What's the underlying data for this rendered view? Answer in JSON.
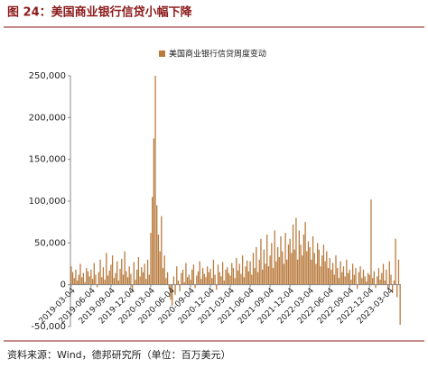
{
  "chart_data": {
    "type": "bar",
    "title": "图 24：美国商业银行信贷小幅下降",
    "source": "资料来源：Wind，德邦研究所（单位：百万美元）",
    "categories": [
      "2019-03-04",
      null,
      null,
      null,
      null,
      null,
      null,
      null,
      null,
      null,
      null,
      null,
      null,
      "2019-06-04",
      null,
      null,
      null,
      null,
      null,
      null,
      null,
      null,
      null,
      null,
      null,
      null,
      "2019-09-04",
      null,
      null,
      null,
      null,
      null,
      null,
      null,
      null,
      null,
      null,
      null,
      null,
      "2019-12-04",
      null,
      null,
      null,
      null,
      null,
      null,
      null,
      null,
      null,
      null,
      null,
      null,
      "2020-03-04",
      null,
      null,
      null,
      null,
      null,
      null,
      null,
      null,
      null,
      null,
      null,
      null,
      "2020-06-04",
      null,
      null,
      null,
      null,
      null,
      null,
      null,
      null,
      null,
      null,
      null,
      null,
      "2020-09-04",
      null,
      null,
      null,
      null,
      null,
      null,
      null,
      null,
      null,
      null,
      null,
      null,
      "2020-12-04",
      null,
      null,
      null,
      null,
      null,
      null,
      null,
      null,
      null,
      null,
      null,
      null,
      "2021-03-04",
      null,
      null,
      null,
      null,
      null,
      null,
      null,
      null,
      null,
      null,
      null,
      null,
      "2021-06-04",
      null,
      null,
      null,
      null,
      null,
      null,
      null,
      null,
      null,
      null,
      null,
      null,
      "2021-09-04",
      null,
      null,
      null,
      null,
      null,
      null,
      null,
      null,
      null,
      null,
      null,
      null,
      "2021-12-04",
      null,
      null,
      null,
      null,
      null,
      null,
      null,
      null,
      null,
      null,
      null,
      null,
      "2022-03-04",
      null,
      null,
      null,
      null,
      null,
      null,
      null,
      null,
      null,
      null,
      null,
      null,
      "2022-06-04",
      null,
      null,
      null,
      null,
      null,
      null,
      null,
      null,
      null,
      null,
      null,
      null,
      "2022-09-04",
      null,
      null,
      null,
      null,
      null,
      null,
      null,
      null,
      null,
      null,
      null,
      null,
      "2022-12-04",
      null,
      null,
      null,
      null,
      null,
      null,
      null,
      null,
      null,
      null,
      null,
      null,
      "2023-03-04",
      null,
      null,
      null,
      null,
      null,
      null,
      null
    ],
    "series": [
      {
        "name": "美国商业银行信贷周度变动",
        "color": "#b97a3c",
        "values": [
          22000,
          15000,
          8000,
          18000,
          5000,
          12000,
          25000,
          9000,
          14000,
          3000,
          20000,
          16000,
          10000,
          18000,
          7000,
          26000,
          12000,
          -3000,
          15000,
          30000,
          9000,
          21000,
          6000,
          38000,
          11000,
          17000,
          24000,
          35000,
          8000,
          14000,
          28000,
          5000,
          19000,
          31000,
          12000,
          40000,
          16000,
          9000,
          22000,
          13000,
          -8000,
          27000,
          6000,
          18000,
          33000,
          10000,
          21000,
          15000,
          25000,
          7000,
          30000,
          12000,
          62000,
          105000,
          175000,
          250000,
          95000,
          60000,
          40000,
          82000,
          20000,
          35000,
          8000,
          15000,
          -5000,
          -18000,
          -25000,
          10000,
          -12000,
          22000,
          5000,
          -8000,
          14000,
          18000,
          3000,
          26000,
          9000,
          12000,
          6000,
          18000,
          24000,
          -4000,
          11000,
          16000,
          28000,
          7000,
          20000,
          13000,
          9000,
          22000,
          15000,
          19000,
          8000,
          30000,
          12000,
          -6000,
          24000,
          15000,
          10000,
          27000,
          5000,
          18000,
          21000,
          14000,
          11000,
          26000,
          20000,
          8000,
          32000,
          17000,
          25000,
          13000,
          35000,
          9000,
          22000,
          29000,
          16000,
          28000,
          12000,
          38000,
          20000,
          45000,
          15000,
          30000,
          55000,
          18000,
          42000,
          25000,
          60000,
          22000,
          35000,
          50000,
          20000,
          65000,
          28000,
          45000,
          33000,
          58000,
          40000,
          25000,
          62000,
          30000,
          48000,
          55000,
          38000,
          72000,
          42000,
          80000,
          30000,
          65000,
          48000,
          35000,
          60000,
          75000,
          40000,
          52000,
          45000,
          30000,
          58000,
          38000,
          25000,
          50000,
          42000,
          22000,
          35000,
          48000,
          28000,
          40000,
          20000,
          32000,
          18000,
          26000,
          12000,
          35000,
          20000,
          8000,
          28000,
          15000,
          22000,
          10000,
          30000,
          14000,
          18000,
          6000,
          25000,
          12000,
          20000,
          -5000,
          15000,
          22000,
          8000,
          18000,
          10000,
          4000,
          14000,
          12000,
          102000,
          8000,
          16000,
          -4000,
          10000,
          20000,
          6000,
          14000,
          25000,
          5000,
          18000,
          -6000,
          28000,
          12000,
          -10000,
          5000,
          55000,
          -15000,
          30000,
          -48000
        ]
      }
    ],
    "ylim": [
      -50000,
      250000
    ],
    "yticks": [
      {
        "value": -50000,
        "label": "-50,000"
      },
      0,
      {
        "value": 50000,
        "label": "50,000"
      },
      {
        "value": 100000,
        "label": "100,000"
      },
      {
        "value": 150000,
        "label": "150,000"
      },
      {
        "value": 200000,
        "label": "200,000"
      },
      {
        "value": 250000,
        "label": "250,000"
      }
    ],
    "legend": "top"
  }
}
